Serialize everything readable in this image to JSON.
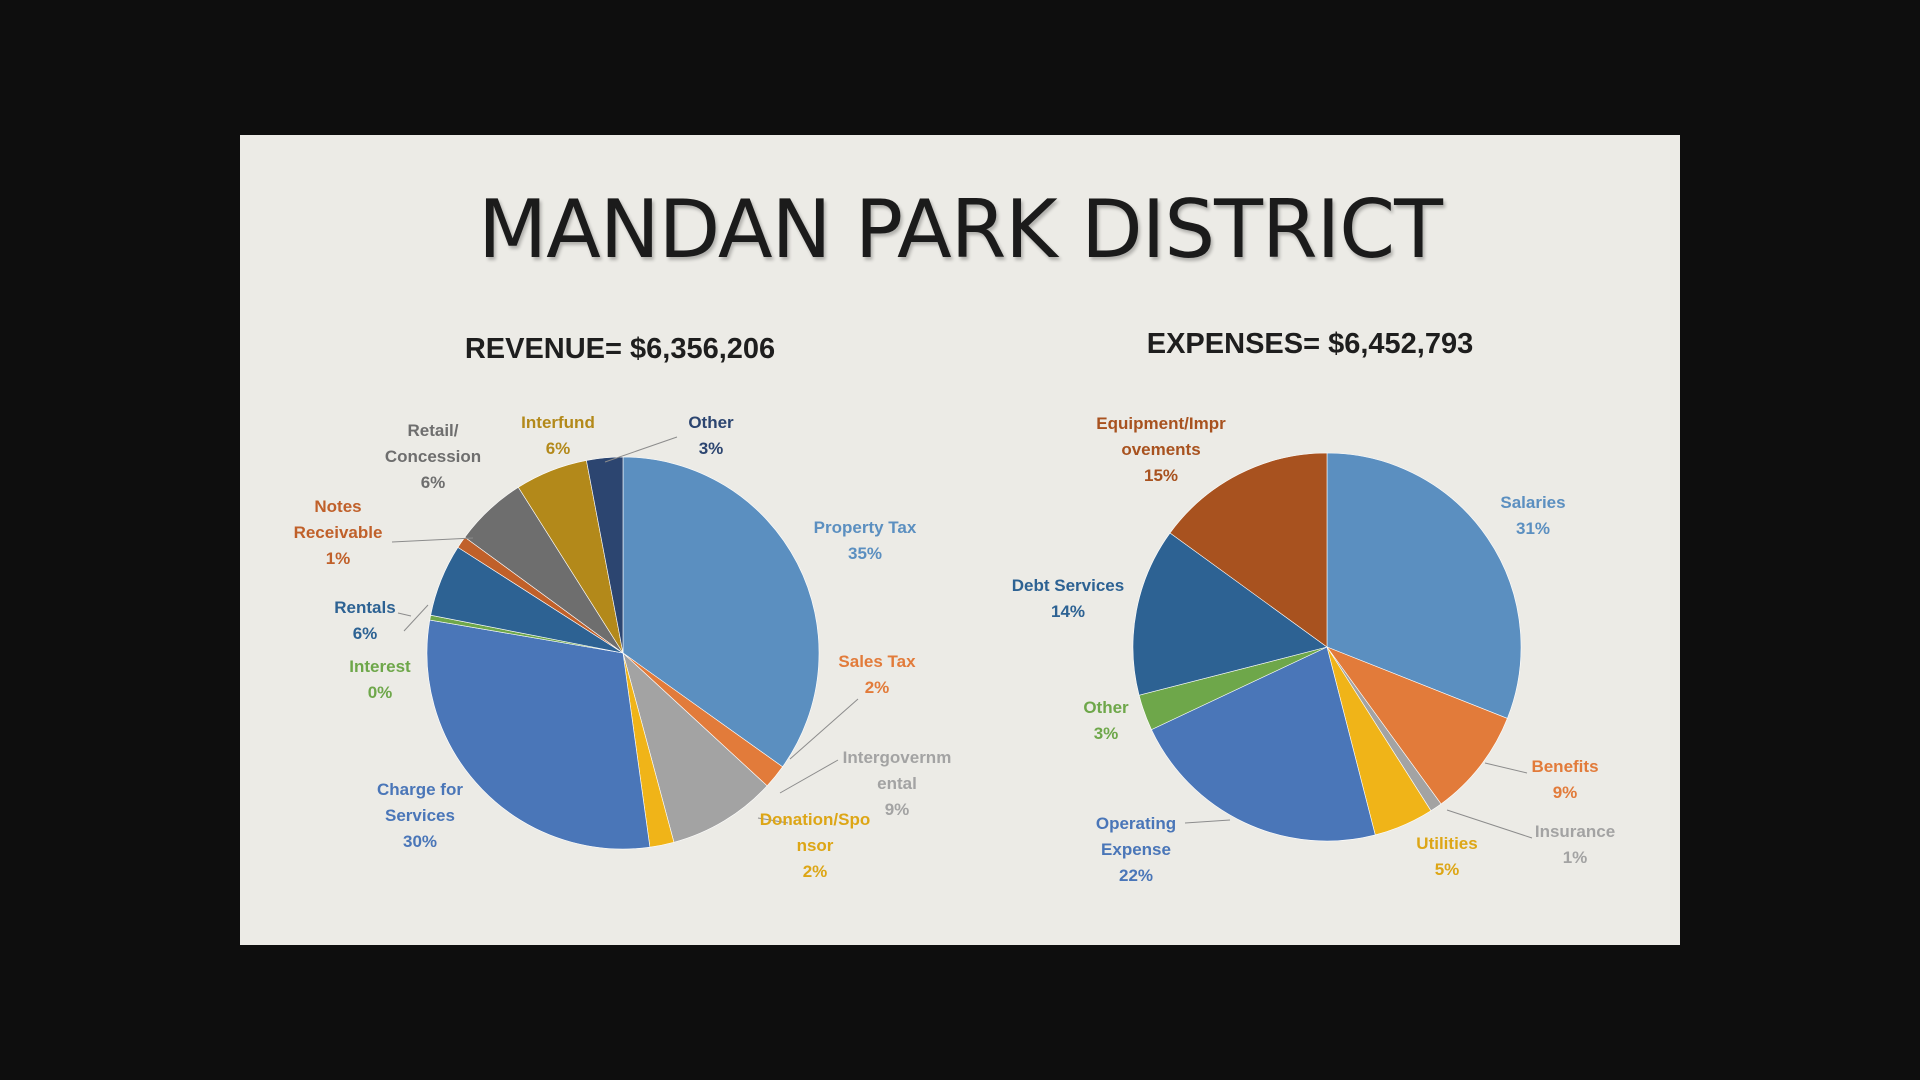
{
  "slide": {
    "title": "MANDAN PARK DISTRICT"
  },
  "chart_data": [
    {
      "type": "pie",
      "title": "REVENUE= $6,356,206",
      "slices": [
        {
          "label": [
            "Property Tax"
          ],
          "value": 35,
          "pct": "35%",
          "color": "#5b8fc0"
        },
        {
          "label": [
            "Sales Tax"
          ],
          "value": 2,
          "pct": "2%",
          "color": "#e27b3a"
        },
        {
          "label": [
            "Intergovernm",
            "ental"
          ],
          "value": 9,
          "pct": "9%",
          "color": "#a3a3a3"
        },
        {
          "label": [
            "Donation/Spo",
            "nsor"
          ],
          "value": 2,
          "pct": "2%",
          "color": "#f0b418"
        },
        {
          "label": [
            "Charge for",
            "Services"
          ],
          "value": 30,
          "pct": "30%",
          "color": "#4a76b8"
        },
        {
          "label": [
            "Interest"
          ],
          "value": 0.4,
          "pct": "0%",
          "color": "#6ea74a"
        },
        {
          "label": [
            "Rentals"
          ],
          "value": 6,
          "pct": "6%",
          "color": "#2d6293"
        },
        {
          "label": [
            "Notes",
            "Receivable"
          ],
          "value": 1,
          "pct": "1%",
          "color": "#c0602a"
        },
        {
          "label": [
            "Retail/",
            "Concession"
          ],
          "value": 6,
          "pct": "6%",
          "color": "#6e6e6e"
        },
        {
          "label": [
            "Interfund"
          ],
          "value": 6,
          "pct": "6%",
          "color": "#b3891a"
        },
        {
          "label": [
            "Other"
          ],
          "value": 3,
          "pct": "3%",
          "color": "#2c4570"
        }
      ]
    },
    {
      "type": "pie",
      "title": "EXPENSES= $6,452,793",
      "slices": [
        {
          "label": [
            "Salaries"
          ],
          "value": 31,
          "pct": "31%",
          "color": "#5b8fc0"
        },
        {
          "label": [
            "Benefits"
          ],
          "value": 9,
          "pct": "9%",
          "color": "#e27b3a"
        },
        {
          "label": [
            "Insurance"
          ],
          "value": 1,
          "pct": "1%",
          "color": "#a3a3a3"
        },
        {
          "label": [
            "Utilities"
          ],
          "value": 5,
          "pct": "5%",
          "color": "#f0b418"
        },
        {
          "label": [
            "Operating",
            "Expense"
          ],
          "value": 22,
          "pct": "22%",
          "color": "#4a76b8"
        },
        {
          "label": [
            "Other"
          ],
          "value": 3,
          "pct": "3%",
          "color": "#6ea74a"
        },
        {
          "label": [
            "Debt Services"
          ],
          "value": 14,
          "pct": "14%",
          "color": "#2d6293"
        },
        {
          "label": [
            "Equipment/Impr",
            "ovements"
          ],
          "value": 15,
          "pct": "15%",
          "color": "#a8521f"
        }
      ]
    }
  ]
}
